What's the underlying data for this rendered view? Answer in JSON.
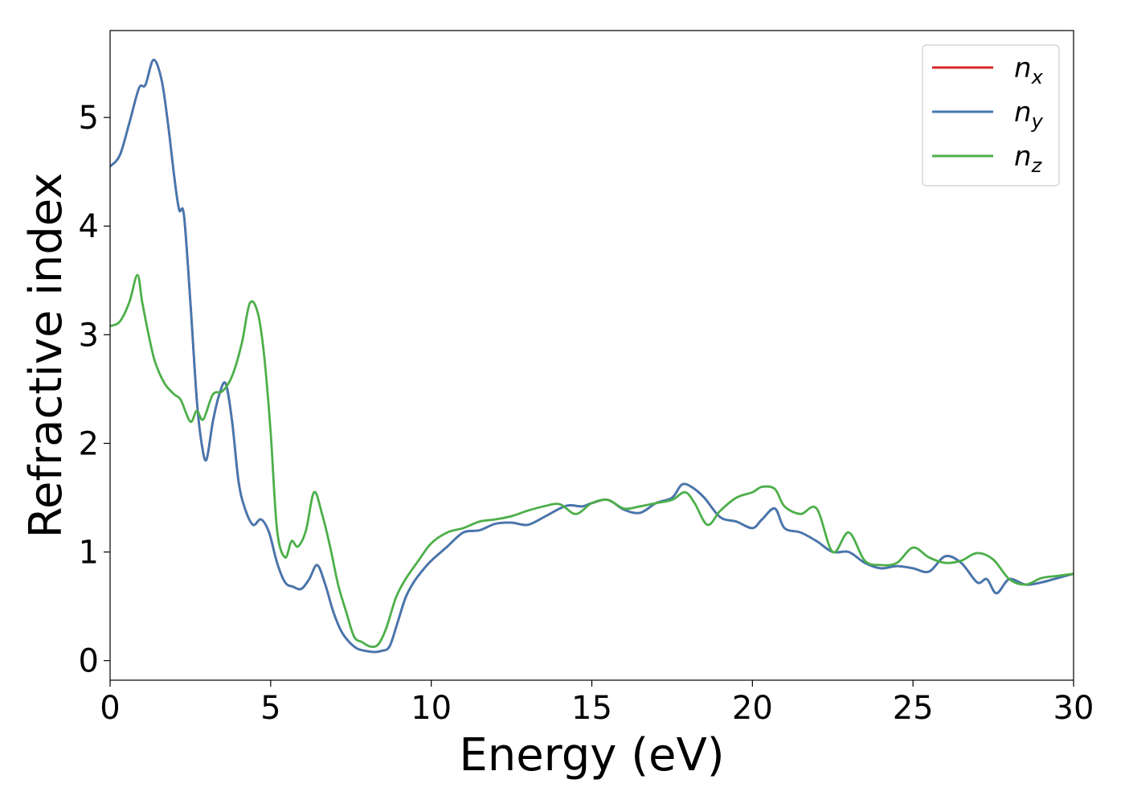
{
  "chart_data": {
    "type": "line",
    "title": "",
    "xlabel": "Energy (eV)",
    "ylabel": "Refractive index",
    "xlim": [
      0,
      30
    ],
    "ylim": [
      -0.18,
      5.8
    ],
    "xticks": [
      0,
      5,
      10,
      15,
      20,
      25,
      30
    ],
    "xtick_labels": [
      "0",
      "5",
      "10",
      "15",
      "20",
      "25",
      "30"
    ],
    "yticks": [
      0,
      1,
      2,
      3,
      4,
      5
    ],
    "ytick_labels": [
      "0",
      "1",
      "2",
      "3",
      "4",
      "5"
    ],
    "grid": false,
    "legend_placement": "top-right",
    "series": [
      {
        "name": "n_x",
        "label_base": "n",
        "label_sub": "x",
        "color": "#d62728",
        "x": [
          0,
          0.3,
          0.6,
          0.9,
          1.1,
          1.35,
          1.6,
          1.8,
          2.0,
          2.15,
          2.3,
          2.5,
          2.7,
          2.85,
          3.0,
          3.2,
          3.4,
          3.6,
          3.8,
          4.0,
          4.2,
          4.45,
          4.7,
          4.95,
          5.2,
          5.45,
          5.7,
          5.95,
          6.2,
          6.45,
          6.7,
          6.95,
          7.2,
          7.45,
          7.7,
          7.95,
          8.2,
          8.45,
          8.7,
          8.95,
          9.2,
          9.45,
          9.7,
          10.0,
          10.5,
          11.0,
          11.5,
          12.0,
          12.5,
          13.0,
          13.5,
          14.0,
          14.3,
          14.7,
          15.0,
          15.5,
          16.0,
          16.5,
          17.0,
          17.5,
          17.8,
          18.1,
          18.5,
          19.0,
          19.5,
          20.0,
          20.3,
          20.7,
          21.0,
          21.5,
          22.0,
          22.5,
          23.0,
          23.5,
          24.0,
          24.5,
          25.0,
          25.5,
          26.0,
          26.5,
          27.0,
          27.3,
          27.6,
          28.0,
          28.5,
          29.0,
          29.5,
          30.0
        ],
        "y": [
          4.55,
          4.65,
          4.95,
          5.27,
          5.3,
          5.53,
          5.35,
          4.95,
          4.45,
          4.15,
          4.1,
          3.3,
          2.4,
          2.0,
          1.85,
          2.2,
          2.45,
          2.55,
          2.2,
          1.65,
          1.4,
          1.25,
          1.3,
          1.18,
          0.9,
          0.72,
          0.68,
          0.66,
          0.75,
          0.88,
          0.7,
          0.45,
          0.27,
          0.17,
          0.11,
          0.09,
          0.08,
          0.09,
          0.13,
          0.35,
          0.58,
          0.72,
          0.82,
          0.92,
          1.05,
          1.18,
          1.2,
          1.26,
          1.27,
          1.25,
          1.32,
          1.4,
          1.43,
          1.42,
          1.45,
          1.48,
          1.39,
          1.36,
          1.45,
          1.5,
          1.62,
          1.6,
          1.5,
          1.32,
          1.28,
          1.22,
          1.3,
          1.4,
          1.22,
          1.18,
          1.1,
          1.0,
          1.0,
          0.9,
          0.85,
          0.87,
          0.85,
          0.82,
          0.96,
          0.9,
          0.72,
          0.75,
          0.62,
          0.75,
          0.7,
          0.72,
          0.76,
          0.8
        ]
      },
      {
        "name": "n_y",
        "label_base": "n",
        "label_sub": "y",
        "color": "#4378b0",
        "x": [
          0,
          0.3,
          0.6,
          0.9,
          1.1,
          1.35,
          1.6,
          1.8,
          2.0,
          2.15,
          2.3,
          2.5,
          2.7,
          2.85,
          3.0,
          3.2,
          3.4,
          3.6,
          3.8,
          4.0,
          4.2,
          4.45,
          4.7,
          4.95,
          5.2,
          5.45,
          5.7,
          5.95,
          6.2,
          6.45,
          6.7,
          6.95,
          7.2,
          7.45,
          7.7,
          7.95,
          8.2,
          8.45,
          8.7,
          8.95,
          9.2,
          9.45,
          9.7,
          10.0,
          10.5,
          11.0,
          11.5,
          12.0,
          12.5,
          13.0,
          13.5,
          14.0,
          14.3,
          14.7,
          15.0,
          15.5,
          16.0,
          16.5,
          17.0,
          17.5,
          17.8,
          18.1,
          18.5,
          19.0,
          19.5,
          20.0,
          20.3,
          20.7,
          21.0,
          21.5,
          22.0,
          22.5,
          23.0,
          23.5,
          24.0,
          24.5,
          25.0,
          25.5,
          26.0,
          26.5,
          27.0,
          27.3,
          27.6,
          28.0,
          28.5,
          29.0,
          29.5,
          30.0
        ],
        "y": [
          4.55,
          4.65,
          4.95,
          5.27,
          5.3,
          5.53,
          5.35,
          4.95,
          4.45,
          4.15,
          4.1,
          3.3,
          2.4,
          2.0,
          1.85,
          2.2,
          2.45,
          2.55,
          2.2,
          1.65,
          1.4,
          1.25,
          1.3,
          1.18,
          0.9,
          0.72,
          0.68,
          0.66,
          0.75,
          0.88,
          0.7,
          0.45,
          0.27,
          0.17,
          0.11,
          0.09,
          0.08,
          0.09,
          0.13,
          0.35,
          0.58,
          0.72,
          0.82,
          0.92,
          1.05,
          1.18,
          1.2,
          1.26,
          1.27,
          1.25,
          1.32,
          1.4,
          1.43,
          1.42,
          1.45,
          1.48,
          1.39,
          1.36,
          1.45,
          1.5,
          1.62,
          1.6,
          1.5,
          1.32,
          1.28,
          1.22,
          1.3,
          1.4,
          1.22,
          1.18,
          1.1,
          1.0,
          1.0,
          0.9,
          0.85,
          0.87,
          0.85,
          0.82,
          0.96,
          0.9,
          0.72,
          0.75,
          0.62,
          0.75,
          0.7,
          0.72,
          0.76,
          0.8
        ]
      },
      {
        "name": "n_z",
        "label_base": "n",
        "label_sub": "z",
        "color": "#4daf4a",
        "x": [
          0,
          0.3,
          0.6,
          0.85,
          1.0,
          1.2,
          1.4,
          1.7,
          2.0,
          2.2,
          2.5,
          2.7,
          2.9,
          3.2,
          3.5,
          3.8,
          4.1,
          4.35,
          4.6,
          4.8,
          5.0,
          5.2,
          5.45,
          5.65,
          5.85,
          6.1,
          6.35,
          6.6,
          6.85,
          7.1,
          7.35,
          7.6,
          7.85,
          8.1,
          8.35,
          8.6,
          8.9,
          9.2,
          9.6,
          10.0,
          10.5,
          11.0,
          11.5,
          12.0,
          12.5,
          13.0,
          13.5,
          14.0,
          14.5,
          15.0,
          15.5,
          16.0,
          16.5,
          17.0,
          17.5,
          17.9,
          18.2,
          18.6,
          19.0,
          19.5,
          20.0,
          20.3,
          20.7,
          21.0,
          21.5,
          22.0,
          22.5,
          23.0,
          23.5,
          24.0,
          24.5,
          25.0,
          25.5,
          26.0,
          26.5,
          27.0,
          27.5,
          28.0,
          28.5,
          29.0,
          29.5,
          30.0
        ],
        "y": [
          3.08,
          3.12,
          3.3,
          3.55,
          3.3,
          3.0,
          2.75,
          2.55,
          2.45,
          2.4,
          2.2,
          2.3,
          2.22,
          2.45,
          2.48,
          2.62,
          2.92,
          3.29,
          3.2,
          2.8,
          2.1,
          1.2,
          0.95,
          1.1,
          1.05,
          1.2,
          1.55,
          1.35,
          1.05,
          0.7,
          0.45,
          0.22,
          0.17,
          0.13,
          0.15,
          0.3,
          0.58,
          0.75,
          0.92,
          1.08,
          1.18,
          1.22,
          1.28,
          1.3,
          1.33,
          1.38,
          1.42,
          1.44,
          1.35,
          1.45,
          1.48,
          1.4,
          1.42,
          1.45,
          1.48,
          1.55,
          1.45,
          1.25,
          1.38,
          1.5,
          1.55,
          1.6,
          1.58,
          1.42,
          1.35,
          1.4,
          1.0,
          1.18,
          0.92,
          0.88,
          0.9,
          1.04,
          0.95,
          0.9,
          0.92,
          0.99,
          0.93,
          0.75,
          0.7,
          0.76,
          0.78,
          0.8
        ]
      }
    ]
  }
}
